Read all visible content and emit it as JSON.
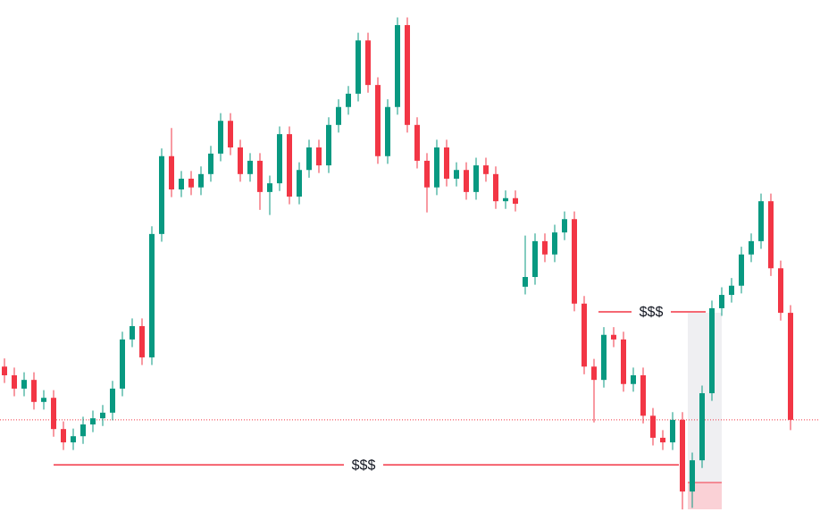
{
  "chart_data": {
    "type": "candlestick",
    "ylim": [
      0,
      100
    ],
    "up_color": "#089981",
    "down_color": "#f23645",
    "open": [
      28.4,
      26.7,
      24.1,
      25.8,
      21.5,
      22.3,
      16.2,
      13.6,
      14.8,
      17.1,
      18.3,
      19.4,
      24.1,
      33.7,
      36.3,
      30.2,
      54.3,
      69.5,
      63.0,
      65.1,
      63.4,
      66.0,
      70.0,
      76.4,
      71.2,
      66.0,
      68.6,
      62.5,
      64.2,
      73.8,
      61.6,
      66.8,
      71.2,
      67.7,
      75.6,
      79.1,
      81.7,
      92.1,
      83.4,
      69.5,
      79.1,
      95.1,
      75.6,
      68.6,
      63.4,
      71.2,
      65.1,
      66.8,
      62.5,
      67.7,
      66.0,
      60.7,
      61.3,
      44.0,
      45.9,
      52.9,
      50.3,
      54.6,
      57.2,
      40.7,
      28.4,
      25.8,
      34.6,
      33.7,
      25.0,
      26.7,
      18.8,
      14.5,
      13.6,
      18.0,
      4.0,
      10.1,
      23.2,
      39.8,
      42.4,
      44.2,
      50.3,
      52.9,
      60.7,
      47.6,
      38.9
    ],
    "high": [
      30.0,
      28.2,
      27.3,
      27.3,
      23.8,
      23.8,
      17.7,
      16.3,
      18.6,
      19.8,
      20.9,
      25.6,
      35.2,
      37.8,
      37.8,
      55.8,
      71.0,
      75.0,
      66.6,
      66.6,
      67.5,
      71.5,
      77.9,
      77.9,
      72.7,
      70.1,
      70.1,
      65.7,
      75.3,
      75.3,
      68.3,
      72.7,
      72.7,
      77.1,
      80.6,
      83.2,
      93.6,
      93.6,
      84.9,
      80.6,
      96.6,
      96.6,
      77.1,
      70.1,
      72.7,
      72.7,
      68.3,
      68.3,
      69.2,
      69.2,
      67.5,
      62.8,
      62.8,
      54.0,
      54.4,
      54.4,
      56.1,
      58.7,
      58.7,
      42.2,
      29.9,
      36.1,
      36.1,
      35.2,
      28.2,
      28.2,
      20.3,
      16.0,
      19.5,
      19.5,
      11.6,
      24.7,
      41.3,
      43.9,
      45.7,
      51.8,
      54.4,
      62.2,
      62.2,
      49.1,
      40.4
    ],
    "low": [
      25.2,
      22.6,
      22.6,
      20.0,
      20.0,
      14.7,
      12.1,
      12.1,
      13.3,
      15.6,
      16.8,
      17.9,
      22.6,
      32.2,
      28.7,
      28.7,
      52.8,
      61.5,
      61.5,
      61.9,
      61.9,
      64.5,
      68.5,
      69.7,
      64.5,
      64.5,
      59.0,
      58.0,
      62.7,
      60.1,
      60.1,
      65.3,
      66.2,
      66.2,
      74.1,
      77.6,
      80.2,
      81.9,
      68.0,
      68.0,
      77.6,
      74.1,
      67.1,
      58.5,
      61.9,
      63.6,
      63.6,
      61.0,
      61.0,
      64.5,
      59.2,
      59.2,
      58.7,
      42.5,
      44.4,
      48.8,
      48.8,
      53.1,
      39.2,
      26.9,
      17.5,
      24.3,
      32.2,
      23.5,
      23.5,
      17.3,
      13.0,
      12.1,
      12.1,
      0.5,
      0.8,
      8.6,
      21.7,
      38.3,
      40.9,
      42.7,
      48.8,
      51.4,
      46.1,
      37.4,
      16.0
    ],
    "close": [
      26.7,
      24.1,
      25.8,
      21.5,
      22.3,
      16.2,
      13.6,
      14.8,
      17.1,
      18.3,
      19.4,
      24.1,
      33.7,
      36.3,
      30.2,
      54.3,
      69.5,
      63.0,
      65.1,
      63.4,
      66.0,
      70.0,
      76.4,
      71.2,
      66.0,
      68.6,
      62.5,
      64.2,
      73.8,
      61.6,
      66.8,
      71.2,
      67.7,
      75.6,
      79.1,
      81.7,
      92.1,
      83.4,
      69.5,
      79.1,
      95.1,
      75.6,
      68.6,
      63.4,
      71.2,
      65.1,
      66.8,
      62.5,
      67.7,
      66.0,
      60.7,
      61.3,
      60.2,
      45.9,
      52.9,
      50.3,
      54.6,
      57.2,
      40.7,
      28.4,
      25.8,
      34.6,
      33.7,
      25.0,
      26.7,
      18.8,
      14.5,
      13.6,
      18.0,
      4.0,
      10.1,
      23.2,
      39.8,
      42.4,
      44.2,
      50.3,
      52.9,
      60.7,
      47.6,
      38.9,
      18.0
    ],
    "annotations": [
      {
        "text": "$$$",
        "value": 9.2,
        "color": "#f23645"
      },
      {
        "text": "$$$",
        "value": 39.1,
        "color": "#f23645"
      }
    ]
  }
}
